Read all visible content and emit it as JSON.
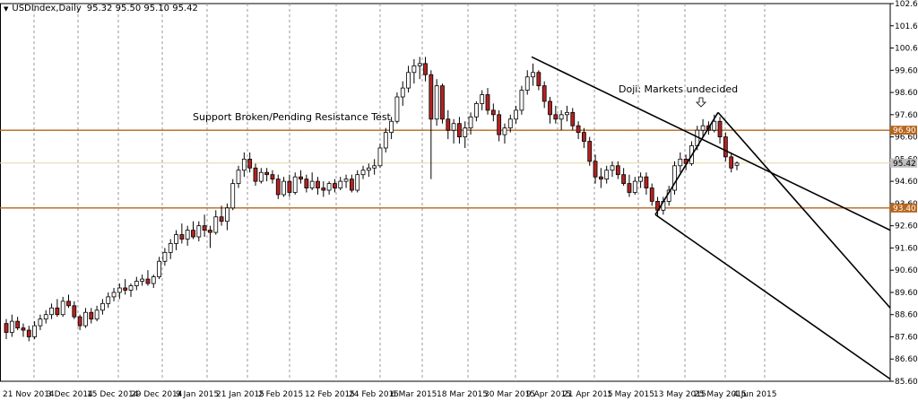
{
  "header": {
    "symbol": "USDIndex,Daily",
    "ohlc": "95.32 95.50 95.10 95.42",
    "menu_icon": "triangle-down-icon"
  },
  "annotations": {
    "support_text": "Support Broken/Pending Resistance Test",
    "doji_text": "Doji: Markets undecided",
    "doji_arrow_icon": "down-arrow-icon"
  },
  "colors": {
    "background": "#ffffff",
    "up_candle": "#ffffff",
    "down_candle": "#b22222",
    "candle_outline": "#000000",
    "level_line": "#b5651d",
    "price_line": "#e6d5a0",
    "grid": "#999999",
    "channel": "#000000"
  },
  "chart_data": {
    "type": "candlestick",
    "title": "USDIndex,Daily",
    "ylim": [
      85.6,
      102.6
    ],
    "y_ticks": [
      "102.60",
      "101.60",
      "100.60",
      "99.60",
      "98.60",
      "97.60",
      "96.60",
      "95.60",
      "94.60",
      "93.60",
      "92.60",
      "91.60",
      "90.60",
      "89.60",
      "88.60",
      "87.60",
      "86.60",
      "85.60"
    ],
    "x_ticks": [
      "21 Nov 2014",
      "3 Dec 2014",
      "15 Dec 2014",
      "29 Dec 2014",
      "9 Jan 2015",
      "21 Jan 2015",
      "2 Feb 2015",
      "12 Feb 2015",
      "24 Feb 2015",
      "6 Mar 2015",
      "18 Mar 2015",
      "30 Mar 2015",
      "9 Apr 2015",
      "21 Apr 2015",
      "1 May 2015",
      "13 May 2015",
      "25 May 2015",
      "4 Jun 2015"
    ],
    "horizontal_levels": [
      {
        "value": 96.9,
        "label": "96.90"
      },
      {
        "value": 93.4,
        "label": "93.40"
      }
    ],
    "current_price": {
      "value": 95.42,
      "label": "95.42"
    },
    "ohlc": [
      [
        88.2,
        88.4,
        87.5,
        87.8
      ],
      [
        87.8,
        88.6,
        87.6,
        88.3
      ],
      [
        88.3,
        88.5,
        87.9,
        88.0
      ],
      [
        88.0,
        88.2,
        87.6,
        87.9
      ],
      [
        87.9,
        88.1,
        87.4,
        87.6
      ],
      [
        87.6,
        88.3,
        87.5,
        88.1
      ],
      [
        88.1,
        88.6,
        87.9,
        88.4
      ],
      [
        88.4,
        88.8,
        88.2,
        88.6
      ],
      [
        88.6,
        89.1,
        88.4,
        88.9
      ],
      [
        88.9,
        89.3,
        88.5,
        88.6
      ],
      [
        88.6,
        89.4,
        88.5,
        89.2
      ],
      [
        89.2,
        89.5,
        88.9,
        89.0
      ],
      [
        89.0,
        89.2,
        88.4,
        88.5
      ],
      [
        88.5,
        88.6,
        87.9,
        88.1
      ],
      [
        88.1,
        88.9,
        88.0,
        88.7
      ],
      [
        88.7,
        88.9,
        88.2,
        88.4
      ],
      [
        88.4,
        89.0,
        88.3,
        88.8
      ],
      [
        88.8,
        89.3,
        88.6,
        89.1
      ],
      [
        89.1,
        89.6,
        88.9,
        89.4
      ],
      [
        89.4,
        89.8,
        89.2,
        89.6
      ],
      [
        89.6,
        90.0,
        89.3,
        89.8
      ],
      [
        89.8,
        90.2,
        89.5,
        89.7
      ],
      [
        89.7,
        90.0,
        89.4,
        89.9
      ],
      [
        89.9,
        90.3,
        89.7,
        90.1
      ],
      [
        90.1,
        90.4,
        89.9,
        90.2
      ],
      [
        90.2,
        90.6,
        89.9,
        90.0
      ],
      [
        90.0,
        90.4,
        89.8,
        90.3
      ],
      [
        90.3,
        91.2,
        90.2,
        91.0
      ],
      [
        91.0,
        91.6,
        90.8,
        91.4
      ],
      [
        91.4,
        92.0,
        91.1,
        91.8
      ],
      [
        91.8,
        92.4,
        91.5,
        92.2
      ],
      [
        92.2,
        92.7,
        91.8,
        92.0
      ],
      [
        92.0,
        92.6,
        91.7,
        92.4
      ],
      [
        92.4,
        92.8,
        92.0,
        92.1
      ],
      [
        92.1,
        92.8,
        91.9,
        92.6
      ],
      [
        92.6,
        93.1,
        92.1,
        92.4
      ],
      [
        92.4,
        92.6,
        91.6,
        92.3
      ],
      [
        92.3,
        93.3,
        92.2,
        93.0
      ],
      [
        93.0,
        93.5,
        92.6,
        92.8
      ],
      [
        92.8,
        93.6,
        92.4,
        93.4
      ],
      [
        93.4,
        94.7,
        93.3,
        94.5
      ],
      [
        94.5,
        95.3,
        94.3,
        95.1
      ],
      [
        95.1,
        95.9,
        94.8,
        95.6
      ],
      [
        95.6,
        95.9,
        95.0,
        95.2
      ],
      [
        95.2,
        95.4,
        94.4,
        94.6
      ],
      [
        94.6,
        95.2,
        94.5,
        95.0
      ],
      [
        95.0,
        95.2,
        94.6,
        94.9
      ],
      [
        94.9,
        95.1,
        94.5,
        94.7
      ],
      [
        94.7,
        94.9,
        93.8,
        94.0
      ],
      [
        94.0,
        94.8,
        93.9,
        94.6
      ],
      [
        94.6,
        94.9,
        93.9,
        94.1
      ],
      [
        94.1,
        95.0,
        94.0,
        94.8
      ],
      [
        94.8,
        95.1,
        94.5,
        94.7
      ],
      [
        94.7,
        94.9,
        94.1,
        94.3
      ],
      [
        94.3,
        95.0,
        94.2,
        94.6
      ],
      [
        94.6,
        94.8,
        94.0,
        94.3
      ],
      [
        94.3,
        94.6,
        93.9,
        94.2
      ],
      [
        94.2,
        94.6,
        94.0,
        94.5
      ],
      [
        94.5,
        94.7,
        94.1,
        94.3
      ],
      [
        94.3,
        94.8,
        94.2,
        94.6
      ],
      [
        94.6,
        94.9,
        94.3,
        94.7
      ],
      [
        94.7,
        94.9,
        94.1,
        94.2
      ],
      [
        94.2,
        95.1,
        94.1,
        94.9
      ],
      [
        94.9,
        95.3,
        94.7,
        95.1
      ],
      [
        95.1,
        95.4,
        94.8,
        95.2
      ],
      [
        95.2,
        95.6,
        94.9,
        95.3
      ],
      [
        95.3,
        96.3,
        95.2,
        96.1
      ],
      [
        96.1,
        97.0,
        95.9,
        96.8
      ],
      [
        96.8,
        97.5,
        96.5,
        97.3
      ],
      [
        97.3,
        98.6,
        97.2,
        98.4
      ],
      [
        98.4,
        99.1,
        98.0,
        98.8
      ],
      [
        98.8,
        99.8,
        98.6,
        99.5
      ],
      [
        99.5,
        100.1,
        99.0,
        99.8
      ],
      [
        99.8,
        100.2,
        99.2,
        99.9
      ],
      [
        99.9,
        100.2,
        99.1,
        99.4
      ],
      [
        99.4,
        99.6,
        94.7,
        97.4
      ],
      [
        97.4,
        99.2,
        97.1,
        98.9
      ],
      [
        98.9,
        99.0,
        97.2,
        97.4
      ],
      [
        97.4,
        97.8,
        96.5,
        96.9
      ],
      [
        96.9,
        97.4,
        96.3,
        97.2
      ],
      [
        97.2,
        97.5,
        96.3,
        96.6
      ],
      [
        96.6,
        97.3,
        96.1,
        97.0
      ],
      [
        97.0,
        97.7,
        96.7,
        97.5
      ],
      [
        97.5,
        98.2,
        97.3,
        98.1
      ],
      [
        98.1,
        98.7,
        97.8,
        98.5
      ],
      [
        98.5,
        98.8,
        97.6,
        97.8
      ],
      [
        97.8,
        98.1,
        97.3,
        97.6
      ],
      [
        97.6,
        97.8,
        96.4,
        96.7
      ],
      [
        96.7,
        97.2,
        96.3,
        97.0
      ],
      [
        97.0,
        97.6,
        96.8,
        97.4
      ],
      [
        97.4,
        98.0,
        97.2,
        97.8
      ],
      [
        97.8,
        98.9,
        97.6,
        98.7
      ],
      [
        98.7,
        99.6,
        98.5,
        99.3
      ],
      [
        99.3,
        99.9,
        98.9,
        99.5
      ],
      [
        99.5,
        99.6,
        98.7,
        98.9
      ],
      [
        98.9,
        99.1,
        97.9,
        98.2
      ],
      [
        98.2,
        98.4,
        97.2,
        97.6
      ],
      [
        97.6,
        98.0,
        97.2,
        97.4
      ],
      [
        97.4,
        97.8,
        96.9,
        97.6
      ],
      [
        97.6,
        98.0,
        97.3,
        97.7
      ],
      [
        97.7,
        97.9,
        96.9,
        97.1
      ],
      [
        97.1,
        97.3,
        96.5,
        96.8
      ],
      [
        96.8,
        97.0,
        96.1,
        96.4
      ],
      [
        96.4,
        96.6,
        95.3,
        95.5
      ],
      [
        95.5,
        95.8,
        94.5,
        94.8
      ],
      [
        94.8,
        95.2,
        94.3,
        94.7
      ],
      [
        94.7,
        95.3,
        94.5,
        95.1
      ],
      [
        95.1,
        95.5,
        94.8,
        95.3
      ],
      [
        95.3,
        95.5,
        94.7,
        94.9
      ],
      [
        94.9,
        95.2,
        94.4,
        94.5
      ],
      [
        94.5,
        94.9,
        93.9,
        94.1
      ],
      [
        94.1,
        94.8,
        94.0,
        94.6
      ],
      [
        94.6,
        95.0,
        94.3,
        94.8
      ],
      [
        94.8,
        95.0,
        94.0,
        94.3
      ],
      [
        94.3,
        94.5,
        93.5,
        93.7
      ],
      [
        93.7,
        93.9,
        93.0,
        93.3
      ],
      [
        93.3,
        93.9,
        93.1,
        93.7
      ],
      [
        93.7,
        94.4,
        93.5,
        94.2
      ],
      [
        94.2,
        95.5,
        94.0,
        95.3
      ],
      [
        95.3,
        95.9,
        95.0,
        95.6
      ],
      [
        95.6,
        95.8,
        95.1,
        95.4
      ],
      [
        95.4,
        96.4,
        95.3,
        96.2
      ],
      [
        96.2,
        97.1,
        96.0,
        96.9
      ],
      [
        96.9,
        97.4,
        96.6,
        97.1
      ],
      [
        97.1,
        97.3,
        96.7,
        96.9
      ],
      [
        96.9,
        97.6,
        96.8,
        97.3
      ],
      [
        97.3,
        97.5,
        96.3,
        96.6
      ],
      [
        96.6,
        96.8,
        95.5,
        95.7
      ],
      [
        95.7,
        95.9,
        95.0,
        95.2
      ],
      [
        95.32,
        95.5,
        95.1,
        95.42
      ]
    ],
    "trendlines": [
      {
        "from": {
          "x": "9 Apr 2015",
          "y": 100.2
        },
        "to": {
          "x": "4 Jun 2015+",
          "y": 92.4
        }
      },
      {
        "from": {
          "x": "13 May 2015",
          "y": 93.1
        },
        "to": {
          "x": "4 Jun 2015+",
          "y": 85.7
        }
      },
      {
        "from": {
          "x": "27 May 2015",
          "y": 97.7
        },
        "to": {
          "x": "4 Jun 2015+",
          "y": 88.9
        }
      },
      {
        "from": {
          "x": "13 May 2015",
          "y": 93.1
        },
        "to": {
          "x": "27 May 2015",
          "y": 97.7
        }
      }
    ]
  }
}
